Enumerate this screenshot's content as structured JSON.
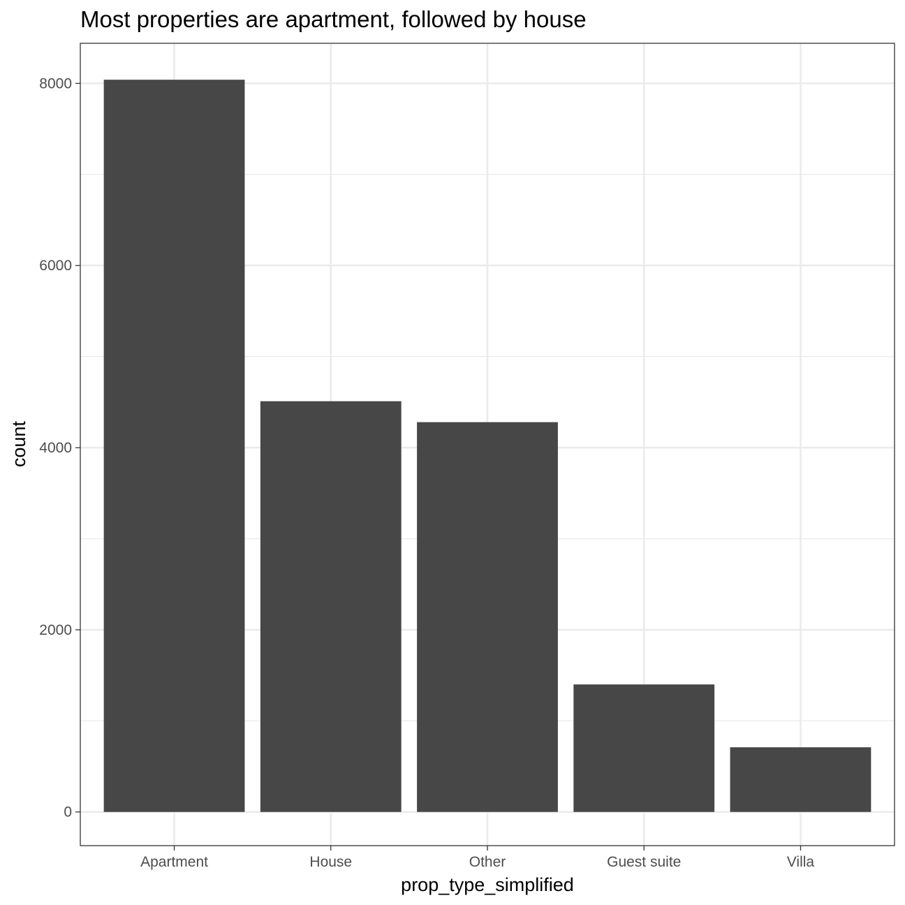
{
  "chart_data": {
    "type": "bar",
    "title": "Most properties are apartment, followed by house",
    "xlabel": "prop_type_simplified",
    "ylabel": "count",
    "categories": [
      "Apartment",
      "House",
      "Other",
      "Guest suite",
      "Villa"
    ],
    "values": [
      8040,
      4510,
      4280,
      1400,
      710
    ],
    "ylim": [
      -370,
      8440
    ],
    "yticks": [
      0,
      2000,
      4000,
      6000,
      8000
    ],
    "ytick_labels": [
      "0",
      "2000",
      "4000",
      "6000",
      "8000"
    ],
    "minor_grid": [
      1000,
      3000,
      5000,
      7000
    ],
    "grid": true,
    "legend": "none",
    "colors": {
      "bar": "#474747",
      "grid": "#ebebeb",
      "panel_border": "#333333",
      "tick_label": "#4d4d4d"
    }
  }
}
